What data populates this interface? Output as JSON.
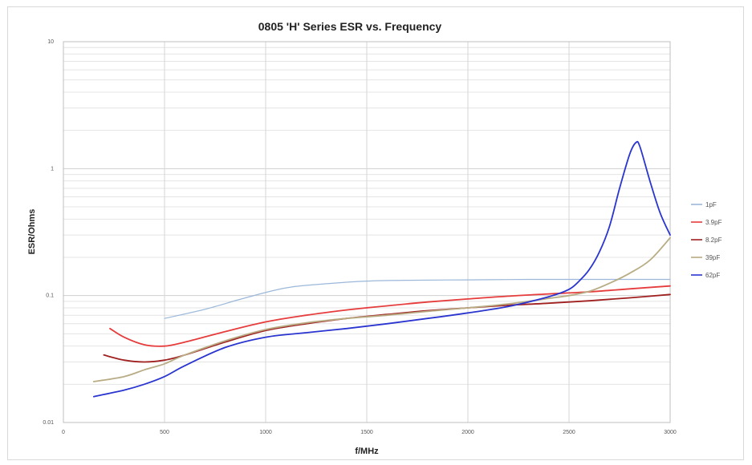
{
  "chart_data": {
    "type": "line",
    "title": "0805 'H' Series ESR vs. Frequency",
    "xlabel": "f/MHz",
    "ylabel": "ESR/Ohms",
    "xlim": [
      0,
      3000
    ],
    "ylim": [
      0.01,
      10
    ],
    "y_scale": "log",
    "grid": true,
    "legend_position": "right",
    "x_ticks": [
      "0",
      "500",
      "1000",
      "1500",
      "2000",
      "2500",
      "3000"
    ],
    "y_ticks": [
      {
        "value": 10,
        "label": "10"
      },
      {
        "value": 1,
        "label": "1"
      },
      {
        "value": 0.1,
        "label": "0.1"
      },
      {
        "value": 0.01,
        "label": "0.01"
      }
    ],
    "series": [
      {
        "name": "1pF",
        "color": "#9bb7d9",
        "x": [
          500,
          700,
          900,
          1100,
          1300,
          1500,
          1700,
          2000,
          2300,
          2600,
          2800,
          3000
        ],
        "y": [
          0.066,
          0.078,
          0.096,
          0.115,
          0.124,
          0.13,
          0.132,
          0.133,
          0.134,
          0.134,
          0.134,
          0.134
        ]
      },
      {
        "name": "3.9pF",
        "color": "#e63c3c",
        "x": [
          230,
          300,
          400,
          500,
          600,
          800,
          1000,
          1200,
          1400,
          1600,
          1800,
          2000,
          2200,
          2400,
          2600,
          2800,
          3000
        ],
        "y": [
          0.055,
          0.047,
          0.041,
          0.04,
          0.043,
          0.052,
          0.062,
          0.07,
          0.077,
          0.083,
          0.089,
          0.094,
          0.099,
          0.103,
          0.107,
          0.113,
          0.119
        ]
      },
      {
        "name": "8.2pF",
        "color": "#a02020",
        "x": [
          200,
          300,
          400,
          500,
          600,
          800,
          1000,
          1200,
          1400,
          1600,
          1800,
          2000,
          2200,
          2400,
          2600,
          2800,
          3000
        ],
        "y": [
          0.034,
          0.031,
          0.03,
          0.031,
          0.034,
          0.043,
          0.053,
          0.06,
          0.066,
          0.071,
          0.076,
          0.08,
          0.084,
          0.087,
          0.091,
          0.096,
          0.102
        ]
      },
      {
        "name": "39pF",
        "color": "#b8ac84",
        "x": [
          150,
          300,
          400,
          500,
          600,
          800,
          1000,
          1200,
          1400,
          1600,
          1800,
          2000,
          2200,
          2400,
          2500,
          2600,
          2700,
          2800,
          2900,
          3000
        ],
        "y": [
          0.021,
          0.023,
          0.026,
          0.029,
          0.034,
          0.044,
          0.054,
          0.061,
          0.066,
          0.07,
          0.075,
          0.08,
          0.086,
          0.095,
          0.1,
          0.108,
          0.125,
          0.15,
          0.19,
          0.285
        ]
      },
      {
        "name": "62pF",
        "color": "#2a35d0",
        "x": [
          150,
          300,
          400,
          500,
          600,
          800,
          1000,
          1200,
          1400,
          1600,
          1800,
          2000,
          2200,
          2400,
          2500,
          2550,
          2600,
          2650,
          2700,
          2750,
          2800,
          2830,
          2850,
          2900,
          2950,
          3000
        ],
        "y": [
          0.016,
          0.018,
          0.02,
          0.023,
          0.028,
          0.039,
          0.047,
          0.051,
          0.055,
          0.06,
          0.066,
          0.073,
          0.082,
          0.098,
          0.112,
          0.13,
          0.16,
          0.22,
          0.35,
          0.7,
          1.3,
          1.6,
          1.5,
          0.8,
          0.45,
          0.3
        ]
      }
    ]
  }
}
